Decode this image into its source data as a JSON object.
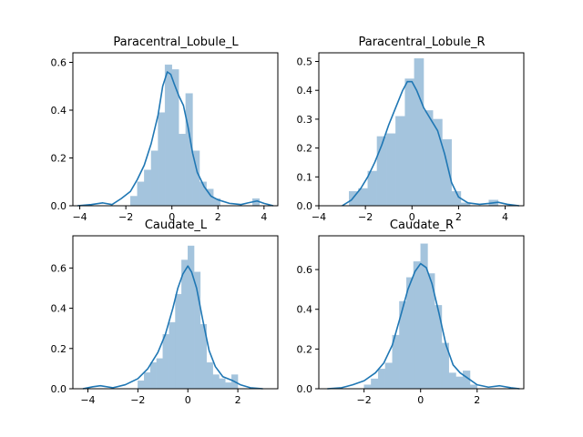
{
  "chart_data": [
    {
      "type": "histogram",
      "title": "Paracentral_Lobule_L",
      "xlabel": "",
      "ylabel": "",
      "xlim": [
        -4.3,
        4.6
      ],
      "ylim": [
        0,
        0.64
      ],
      "xticks": [
        -4,
        -2,
        0,
        2,
        4
      ],
      "xtick_labels": [
        "−4",
        "−2",
        "0",
        "2",
        "4"
      ],
      "yticks": [
        0,
        0.2,
        0.4,
        0.6
      ],
      "ytick_labels": [
        "0.0",
        "0.2",
        "0.4",
        "0.6"
      ],
      "bins": [
        {
          "x0": -1.8,
          "x1": -1.5,
          "y": 0.04
        },
        {
          "x0": -1.5,
          "x1": -1.2,
          "y": 0.1
        },
        {
          "x0": -1.2,
          "x1": -0.9,
          "y": 0.15
        },
        {
          "x0": -0.9,
          "x1": -0.6,
          "y": 0.23
        },
        {
          "x0": -0.6,
          "x1": -0.3,
          "y": 0.39
        },
        {
          "x0": -0.3,
          "x1": 0.0,
          "y": 0.59
        },
        {
          "x0": 0.0,
          "x1": 0.3,
          "y": 0.57
        },
        {
          "x0": 0.3,
          "x1": 0.6,
          "y": 0.3
        },
        {
          "x0": 0.6,
          "x1": 0.9,
          "y": 0.47
        },
        {
          "x0": 0.9,
          "x1": 1.2,
          "y": 0.23
        },
        {
          "x0": 1.2,
          "x1": 1.5,
          "y": 0.1
        },
        {
          "x0": 1.5,
          "x1": 1.8,
          "y": 0.07
        },
        {
          "x0": 1.8,
          "x1": 2.1,
          "y": 0.03
        },
        {
          "x0": 3.5,
          "x1": 3.8,
          "y": 0.03
        }
      ],
      "kde": [
        [
          -4.1,
          0.0
        ],
        [
          -3.5,
          0.005
        ],
        [
          -3.0,
          0.012
        ],
        [
          -2.6,
          0.005
        ],
        [
          -2.2,
          0.03
        ],
        [
          -1.8,
          0.06
        ],
        [
          -1.5,
          0.11
        ],
        [
          -1.2,
          0.17
        ],
        [
          -0.9,
          0.26
        ],
        [
          -0.6,
          0.38
        ],
        [
          -0.4,
          0.5
        ],
        [
          -0.2,
          0.56
        ],
        [
          -0.05,
          0.55
        ],
        [
          0.1,
          0.51
        ],
        [
          0.3,
          0.46
        ],
        [
          0.5,
          0.42
        ],
        [
          0.7,
          0.33
        ],
        [
          0.9,
          0.22
        ],
        [
          1.1,
          0.14
        ],
        [
          1.4,
          0.08
        ],
        [
          1.7,
          0.04
        ],
        [
          2.0,
          0.025
        ],
        [
          2.5,
          0.01
        ],
        [
          3.0,
          0.005
        ],
        [
          3.3,
          0.012
        ],
        [
          3.7,
          0.02
        ],
        [
          4.0,
          0.01
        ],
        [
          4.4,
          0.0
        ]
      ]
    },
    {
      "type": "histogram",
      "title": "Paracentral_Lobule_R",
      "xlabel": "",
      "ylabel": "",
      "xlim": [
        -4.0,
        4.8
      ],
      "ylim": [
        0,
        0.53
      ],
      "xticks": [
        -4,
        -2,
        0,
        2,
        4
      ],
      "xtick_labels": [
        "−4",
        "−2",
        "0",
        "2",
        "4"
      ],
      "yticks": [
        0,
        0.1,
        0.2,
        0.3,
        0.4,
        0.5
      ],
      "ytick_labels": [
        "0.0",
        "0.1",
        "0.2",
        "0.3",
        "0.4",
        "0.5"
      ],
      "bins": [
        {
          "x0": -2.7,
          "x1": -2.3,
          "y": 0.05
        },
        {
          "x0": -2.3,
          "x1": -1.9,
          "y": 0.06
        },
        {
          "x0": -1.9,
          "x1": -1.5,
          "y": 0.12
        },
        {
          "x0": -1.5,
          "x1": -1.1,
          "y": 0.24
        },
        {
          "x0": -1.1,
          "x1": -0.7,
          "y": 0.25
        },
        {
          "x0": -0.7,
          "x1": -0.3,
          "y": 0.31
        },
        {
          "x0": -0.3,
          "x1": 0.1,
          "y": 0.44
        },
        {
          "x0": 0.1,
          "x1": 0.5,
          "y": 0.51
        },
        {
          "x0": 0.5,
          "x1": 0.9,
          "y": 0.33
        },
        {
          "x0": 0.9,
          "x1": 1.3,
          "y": 0.3
        },
        {
          "x0": 1.3,
          "x1": 1.7,
          "y": 0.23
        },
        {
          "x0": 1.7,
          "x1": 2.1,
          "y": 0.05
        },
        {
          "x0": 2.1,
          "x1": 2.5,
          "y": 0.01
        },
        {
          "x0": 3.3,
          "x1": 3.7,
          "y": 0.02
        }
      ],
      "kde": [
        [
          -3.0,
          0.0
        ],
        [
          -2.6,
          0.02
        ],
        [
          -2.2,
          0.06
        ],
        [
          -1.9,
          0.1
        ],
        [
          -1.6,
          0.15
        ],
        [
          -1.3,
          0.21
        ],
        [
          -1.0,
          0.28
        ],
        [
          -0.7,
          0.34
        ],
        [
          -0.4,
          0.4
        ],
        [
          -0.2,
          0.43
        ],
        [
          0.0,
          0.43
        ],
        [
          0.2,
          0.4
        ],
        [
          0.5,
          0.34
        ],
        [
          0.8,
          0.3
        ],
        [
          1.1,
          0.26
        ],
        [
          1.4,
          0.18
        ],
        [
          1.7,
          0.08
        ],
        [
          2.0,
          0.03
        ],
        [
          2.4,
          0.01
        ],
        [
          2.9,
          0.005
        ],
        [
          3.3,
          0.008
        ],
        [
          3.7,
          0.012
        ],
        [
          4.1,
          0.005
        ],
        [
          4.6,
          0.0
        ]
      ]
    },
    {
      "type": "histogram",
      "title": "Caudate_L",
      "xlabel": "",
      "ylabel": "",
      "xlim": [
        -4.6,
        3.6
      ],
      "ylim": [
        0,
        0.76
      ],
      "xticks": [
        -4,
        -2,
        0,
        2
      ],
      "xtick_labels": [
        "−4",
        "−2",
        "0",
        "2"
      ],
      "yticks": [
        0,
        0.2,
        0.4,
        0.6
      ],
      "ytick_labels": [
        "0.0",
        "0.2",
        "0.4",
        "0.6"
      ],
      "bins": [
        {
          "x0": -2.0,
          "x1": -1.75,
          "y": 0.04
        },
        {
          "x0": -1.75,
          "x1": -1.5,
          "y": 0.08
        },
        {
          "x0": -1.5,
          "x1": -1.25,
          "y": 0.13
        },
        {
          "x0": -1.25,
          "x1": -1.0,
          "y": 0.15
        },
        {
          "x0": -1.0,
          "x1": -0.75,
          "y": 0.27
        },
        {
          "x0": -0.75,
          "x1": -0.5,
          "y": 0.33
        },
        {
          "x0": -0.5,
          "x1": -0.25,
          "y": 0.47
        },
        {
          "x0": -0.25,
          "x1": 0.0,
          "y": 0.64
        },
        {
          "x0": 0.0,
          "x1": 0.25,
          "y": 0.71
        },
        {
          "x0": 0.25,
          "x1": 0.5,
          "y": 0.58
        },
        {
          "x0": 0.5,
          "x1": 0.75,
          "y": 0.32
        },
        {
          "x0": 0.75,
          "x1": 1.0,
          "y": 0.13
        },
        {
          "x0": 1.0,
          "x1": 1.25,
          "y": 0.07
        },
        {
          "x0": 1.25,
          "x1": 1.5,
          "y": 0.05
        },
        {
          "x0": 1.5,
          "x1": 1.75,
          "y": 0.03
        },
        {
          "x0": 1.75,
          "x1": 2.0,
          "y": 0.07
        }
      ],
      "kde": [
        [
          -4.2,
          0.0
        ],
        [
          -3.8,
          0.01
        ],
        [
          -3.5,
          0.015
        ],
        [
          -3.0,
          0.005
        ],
        [
          -2.5,
          0.02
        ],
        [
          -2.0,
          0.05
        ],
        [
          -1.6,
          0.1
        ],
        [
          -1.2,
          0.18
        ],
        [
          -0.9,
          0.27
        ],
        [
          -0.6,
          0.4
        ],
        [
          -0.4,
          0.5
        ],
        [
          -0.2,
          0.57
        ],
        [
          0.0,
          0.61
        ],
        [
          0.15,
          0.58
        ],
        [
          0.35,
          0.5
        ],
        [
          0.6,
          0.34
        ],
        [
          0.85,
          0.19
        ],
        [
          1.1,
          0.11
        ],
        [
          1.4,
          0.06
        ],
        [
          1.8,
          0.04
        ],
        [
          2.1,
          0.02
        ],
        [
          2.5,
          0.005
        ],
        [
          3.0,
          0.0
        ]
      ]
    },
    {
      "type": "histogram",
      "title": "Caudate_R",
      "xlabel": "",
      "ylabel": "",
      "xlim": [
        -3.6,
        3.65
      ],
      "ylim": [
        0,
        0.77
      ],
      "xticks": [
        -2,
        0,
        2
      ],
      "xtick_labels": [
        "−2",
        "0",
        "2"
      ],
      "yticks": [
        0,
        0.2,
        0.4,
        0.6
      ],
      "ytick_labels": [
        "0.0",
        "0.2",
        "0.4",
        "0.6"
      ],
      "bins": [
        {
          "x0": -2.0,
          "x1": -1.75,
          "y": 0.02
        },
        {
          "x0": -1.75,
          "x1": -1.5,
          "y": 0.05
        },
        {
          "x0": -1.5,
          "x1": -1.25,
          "y": 0.1
        },
        {
          "x0": -1.25,
          "x1": -1.0,
          "y": 0.13
        },
        {
          "x0": -1.0,
          "x1": -0.75,
          "y": 0.27
        },
        {
          "x0": -0.75,
          "x1": -0.5,
          "y": 0.44
        },
        {
          "x0": -0.5,
          "x1": -0.25,
          "y": 0.56
        },
        {
          "x0": -0.25,
          "x1": 0.0,
          "y": 0.64
        },
        {
          "x0": 0.0,
          "x1": 0.25,
          "y": 0.73
        },
        {
          "x0": 0.25,
          "x1": 0.5,
          "y": 0.58
        },
        {
          "x0": 0.5,
          "x1": 0.75,
          "y": 0.42
        },
        {
          "x0": 0.75,
          "x1": 1.0,
          "y": 0.23
        },
        {
          "x0": 1.0,
          "x1": 1.25,
          "y": 0.08
        },
        {
          "x0": 1.25,
          "x1": 1.5,
          "y": 0.06
        },
        {
          "x0": 1.5,
          "x1": 1.75,
          "y": 0.09
        },
        {
          "x0": 1.75,
          "x1": 2.0,
          "y": 0.02
        }
      ],
      "kde": [
        [
          -3.3,
          0.0
        ],
        [
          -2.8,
          0.005
        ],
        [
          -2.4,
          0.02
        ],
        [
          -2.0,
          0.04
        ],
        [
          -1.6,
          0.08
        ],
        [
          -1.3,
          0.13
        ],
        [
          -1.0,
          0.22
        ],
        [
          -0.7,
          0.37
        ],
        [
          -0.45,
          0.5
        ],
        [
          -0.2,
          0.59
        ],
        [
          0.0,
          0.63
        ],
        [
          0.2,
          0.61
        ],
        [
          0.4,
          0.53
        ],
        [
          0.65,
          0.38
        ],
        [
          0.9,
          0.22
        ],
        [
          1.15,
          0.12
        ],
        [
          1.4,
          0.08
        ],
        [
          1.7,
          0.05
        ],
        [
          2.0,
          0.02
        ],
        [
          2.4,
          0.008
        ],
        [
          2.8,
          0.015
        ],
        [
          3.2,
          0.005
        ],
        [
          3.5,
          0.0
        ]
      ]
    }
  ]
}
